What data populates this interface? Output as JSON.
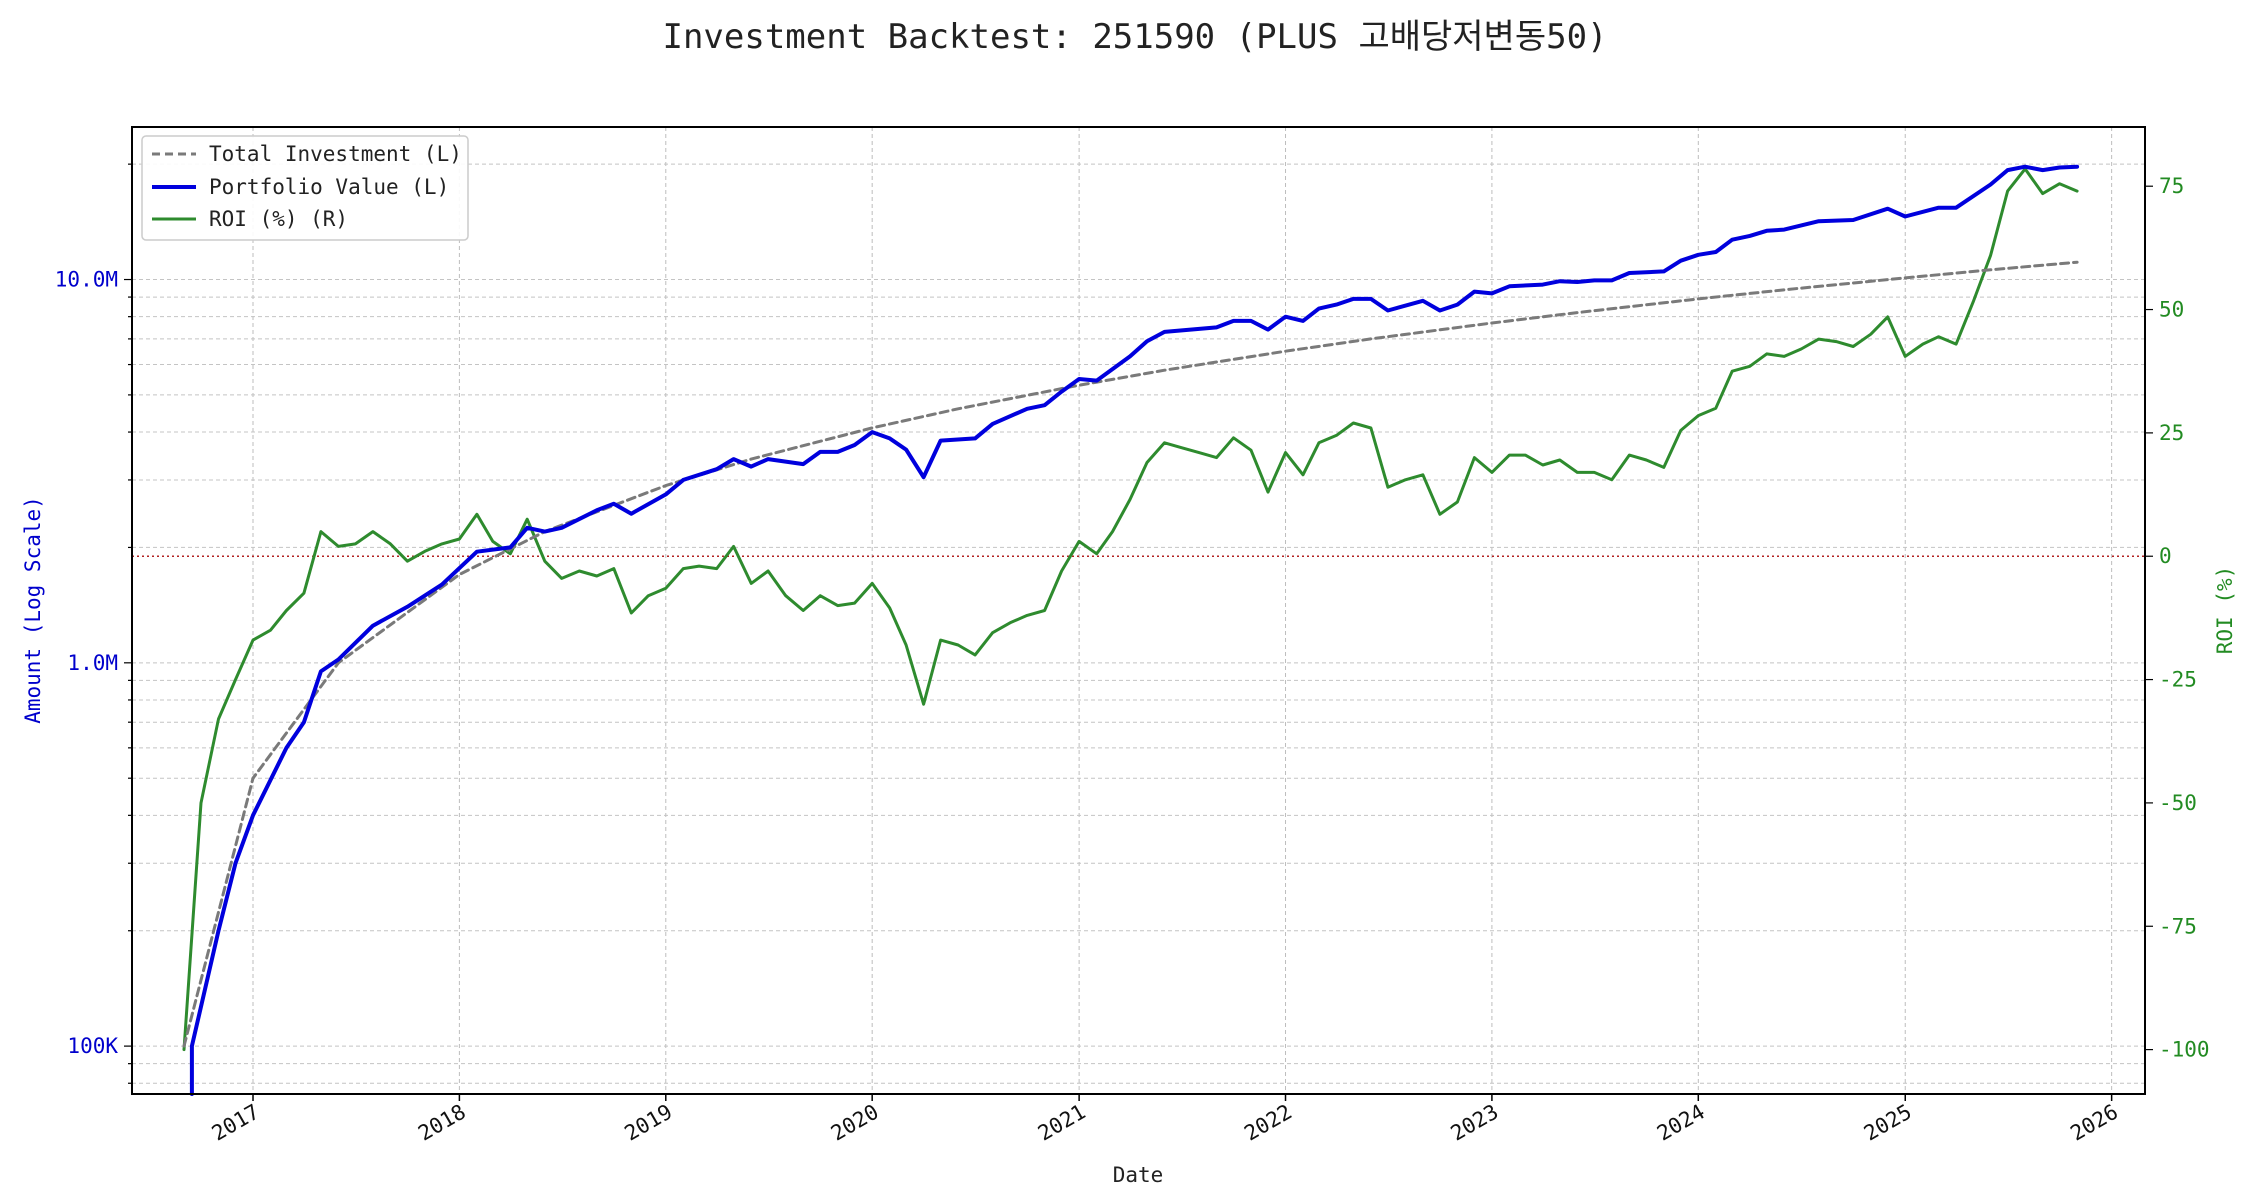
{
  "chart_data": {
    "type": "line",
    "title": "Investment Backtest: 251590 (PLUS 고배당저변동50)",
    "xlabel": "Date",
    "ylabel_left": "Amount (Log Scale)",
    "ylabel_right": "ROI (%)",
    "x_range": [
      "2016-06-01",
      "2026-03-01"
    ],
    "x_ticks": [
      "2017",
      "2018",
      "2019",
      "2020",
      "2021",
      "2022",
      "2023",
      "2024",
      "2025",
      "2026"
    ],
    "y_left_scale": "log",
    "y_left_range": [
      75000,
      25000000
    ],
    "y_left_ticks": [
      {
        "value": 100000,
        "label": "100K"
      },
      {
        "value": 1000000,
        "label": "1.0M"
      },
      {
        "value": 10000000,
        "label": "10.0M"
      }
    ],
    "y_right_range": [
      -109,
      87
    ],
    "y_right_ticks": [
      -100,
      -75,
      -50,
      -25,
      0,
      25,
      50,
      75
    ],
    "grid": true,
    "legend_position": "top-left",
    "reference_line": {
      "axis": "right",
      "value": 0,
      "color": "#b22222",
      "style": "dotted"
    },
    "colors": {
      "total_investment": "#7a7a7a",
      "portfolio": "#0000dd",
      "roi": "#2e8b2e",
      "left_axis": "#0000cc",
      "right_axis": "#228b22"
    },
    "series": [
      {
        "name": "Total Investment (L)",
        "axis": "left",
        "style": "dashed",
        "points": [
          [
            "2016-09-01",
            100000
          ],
          [
            "2017-01-01",
            500000
          ],
          [
            "2017-06-01",
            1000000
          ],
          [
            "2018-01-01",
            1700000
          ],
          [
            "2018-06-01",
            2200000
          ],
          [
            "2019-01-01",
            2900000
          ],
          [
            "2019-06-01",
            3400000
          ],
          [
            "2020-01-01",
            4100000
          ],
          [
            "2020-06-01",
            4600000
          ],
          [
            "2021-01-01",
            5300000
          ],
          [
            "2021-06-01",
            5800000
          ],
          [
            "2022-01-01",
            6500000
          ],
          [
            "2022-06-01",
            7000000
          ],
          [
            "2023-01-01",
            7700000
          ],
          [
            "2023-06-01",
            8200000
          ],
          [
            "2024-01-01",
            8900000
          ],
          [
            "2024-06-01",
            9400000
          ],
          [
            "2025-01-01",
            10100000
          ],
          [
            "2025-06-01",
            10600000
          ],
          [
            "2025-11-01",
            11100000
          ]
        ]
      },
      {
        "name": "Portfolio Value (L)",
        "axis": "left",
        "style": "solid",
        "points": [
          [
            "2016-09-15",
            75000
          ],
          [
            "2016-09-15",
            100000
          ],
          [
            "2016-11-01",
            200000
          ],
          [
            "2016-12-01",
            300000
          ],
          [
            "2017-01-01",
            400000
          ],
          [
            "2017-03-01",
            600000
          ],
          [
            "2017-04-01",
            700000
          ],
          [
            "2017-05-01",
            950000
          ],
          [
            "2017-06-01",
            1020000
          ],
          [
            "2017-08-01",
            1250000
          ],
          [
            "2017-10-01",
            1400000
          ],
          [
            "2017-12-01",
            1600000
          ],
          [
            "2018-02-01",
            1950000
          ],
          [
            "2018-04-01",
            2000000
          ],
          [
            "2018-05-01",
            2250000
          ],
          [
            "2018-06-01",
            2200000
          ],
          [
            "2018-07-01",
            2250000
          ],
          [
            "2018-09-01",
            2500000
          ],
          [
            "2018-10-01",
            2600000
          ],
          [
            "2018-11-01",
            2450000
          ],
          [
            "2019-01-01",
            2750000
          ],
          [
            "2019-02-01",
            3000000
          ],
          [
            "2019-04-01",
            3200000
          ],
          [
            "2019-05-01",
            3400000
          ],
          [
            "2019-06-01",
            3250000
          ],
          [
            "2019-07-01",
            3400000
          ],
          [
            "2019-09-01",
            3300000
          ],
          [
            "2019-10-01",
            3550000
          ],
          [
            "2019-11-01",
            3550000
          ],
          [
            "2019-12-01",
            3700000
          ],
          [
            "2020-01-01",
            4000000
          ],
          [
            "2020-02-01",
            3850000
          ],
          [
            "2020-03-01",
            3600000
          ],
          [
            "2020-04-01",
            3050000
          ],
          [
            "2020-05-01",
            3800000
          ],
          [
            "2020-07-01",
            3850000
          ],
          [
            "2020-08-01",
            4200000
          ],
          [
            "2020-10-01",
            4600000
          ],
          [
            "2020-11-01",
            4700000
          ],
          [
            "2020-12-01",
            5100000
          ],
          [
            "2021-01-01",
            5500000
          ],
          [
            "2021-02-01",
            5450000
          ],
          [
            "2021-04-01",
            6300000
          ],
          [
            "2021-05-01",
            6900000
          ],
          [
            "2021-06-01",
            7300000
          ],
          [
            "2021-09-01",
            7500000
          ],
          [
            "2021-10-01",
            7800000
          ],
          [
            "2021-11-01",
            7800000
          ],
          [
            "2021-12-01",
            7400000
          ],
          [
            "2022-01-01",
            8000000
          ],
          [
            "2022-02-01",
            7800000
          ],
          [
            "2022-03-01",
            8400000
          ],
          [
            "2022-04-01",
            8600000
          ],
          [
            "2022-05-01",
            8900000
          ],
          [
            "2022-06-01",
            8900000
          ],
          [
            "2022-07-01",
            8300000
          ],
          [
            "2022-09-01",
            8800000
          ],
          [
            "2022-10-01",
            8300000
          ],
          [
            "2022-11-01",
            8600000
          ],
          [
            "2022-12-01",
            9300000
          ],
          [
            "2023-01-01",
            9200000
          ],
          [
            "2023-02-01",
            9600000
          ],
          [
            "2023-04-01",
            9700000
          ],
          [
            "2023-05-01",
            9900000
          ],
          [
            "2023-06-01",
            9850000
          ],
          [
            "2023-07-01",
            9950000
          ],
          [
            "2023-08-01",
            9950000
          ],
          [
            "2023-09-01",
            10400000
          ],
          [
            "2023-11-01",
            10500000
          ],
          [
            "2023-12-01",
            11200000
          ],
          [
            "2024-01-01",
            11600000
          ],
          [
            "2024-02-01",
            11800000
          ],
          [
            "2024-03-01",
            12700000
          ],
          [
            "2024-04-01",
            13000000
          ],
          [
            "2024-05-01",
            13400000
          ],
          [
            "2024-06-01",
            13500000
          ],
          [
            "2024-08-01",
            14200000
          ],
          [
            "2024-10-01",
            14300000
          ],
          [
            "2024-12-01",
            15300000
          ],
          [
            "2025-01-01",
            14600000
          ],
          [
            "2025-03-01",
            15400000
          ],
          [
            "2025-04-01",
            15400000
          ],
          [
            "2025-06-01",
            17700000
          ],
          [
            "2025-07-01",
            19300000
          ],
          [
            "2025-08-01",
            19700000
          ],
          [
            "2025-09-01",
            19300000
          ],
          [
            "2025-10-01",
            19600000
          ],
          [
            "2025-11-01",
            19700000
          ]
        ]
      },
      {
        "name": "ROI (%) (R)",
        "axis": "right",
        "style": "solid",
        "points": [
          [
            "2016-09-01",
            -100
          ],
          [
            "2016-10-01",
            -50
          ],
          [
            "2016-11-01",
            -33
          ],
          [
            "2016-12-01",
            -25
          ],
          [
            "2017-01-01",
            -17
          ],
          [
            "2017-02-01",
            -15
          ],
          [
            "2017-03-01",
            -11
          ],
          [
            "2017-04-01",
            -7.5
          ],
          [
            "2017-05-01",
            5
          ],
          [
            "2017-06-01",
            2
          ],
          [
            "2017-07-01",
            2.5
          ],
          [
            "2017-08-01",
            5
          ],
          [
            "2017-09-01",
            2.5
          ],
          [
            "2017-10-01",
            -1
          ],
          [
            "2017-11-01",
            1
          ],
          [
            "2017-12-01",
            2.5
          ],
          [
            "2018-01-01",
            3.5
          ],
          [
            "2018-02-01",
            8.5
          ],
          [
            "2018-03-01",
            3
          ],
          [
            "2018-04-01",
            0.5
          ],
          [
            "2018-05-01",
            7.5
          ],
          [
            "2018-06-01",
            -1
          ],
          [
            "2018-07-01",
            -4.5
          ],
          [
            "2018-08-01",
            -3
          ],
          [
            "2018-09-01",
            -4
          ],
          [
            "2018-10-01",
            -2.5
          ],
          [
            "2018-11-01",
            -11.5
          ],
          [
            "2018-12-01",
            -8
          ],
          [
            "2019-01-01",
            -6.5
          ],
          [
            "2019-02-01",
            -2.5
          ],
          [
            "2019-03-01",
            -2
          ],
          [
            "2019-04-01",
            -2.5
          ],
          [
            "2019-05-01",
            2
          ],
          [
            "2019-06-01",
            -5.5
          ],
          [
            "2019-07-01",
            -3
          ],
          [
            "2019-08-01",
            -8
          ],
          [
            "2019-09-01",
            -11
          ],
          [
            "2019-10-01",
            -8
          ],
          [
            "2019-11-01",
            -10
          ],
          [
            "2019-12-01",
            -9.5
          ],
          [
            "2020-01-01",
            -5.5
          ],
          [
            "2020-02-01",
            -10.5
          ],
          [
            "2020-03-01",
            -18
          ],
          [
            "2020-04-01",
            -30
          ],
          [
            "2020-05-01",
            -17
          ],
          [
            "2020-06-01",
            -18
          ],
          [
            "2020-07-01",
            -20
          ],
          [
            "2020-08-01",
            -15.5
          ],
          [
            "2020-09-01",
            -13.5
          ],
          [
            "2020-10-01",
            -12
          ],
          [
            "2020-11-01",
            -11
          ],
          [
            "2020-12-01",
            -3
          ],
          [
            "2021-01-01",
            3
          ],
          [
            "2021-02-01",
            0.5
          ],
          [
            "2021-03-01",
            5
          ],
          [
            "2021-04-01",
            11.5
          ],
          [
            "2021-05-01",
            19
          ],
          [
            "2021-06-01",
            23
          ],
          [
            "2021-07-01",
            22
          ],
          [
            "2021-08-01",
            21
          ],
          [
            "2021-09-01",
            20
          ],
          [
            "2021-10-01",
            24
          ],
          [
            "2021-11-01",
            21.5
          ],
          [
            "2021-12-01",
            13
          ],
          [
            "2022-01-01",
            21
          ],
          [
            "2022-02-01",
            16.5
          ],
          [
            "2022-03-01",
            23
          ],
          [
            "2022-04-01",
            24.5
          ],
          [
            "2022-05-01",
            27
          ],
          [
            "2022-06-01",
            26
          ],
          [
            "2022-07-01",
            14
          ],
          [
            "2022-08-01",
            15.5
          ],
          [
            "2022-09-01",
            16.5
          ],
          [
            "2022-10-01",
            8.5
          ],
          [
            "2022-11-01",
            11
          ],
          [
            "2022-12-01",
            20
          ],
          [
            "2023-01-01",
            17
          ],
          [
            "2023-02-01",
            20.5
          ],
          [
            "2023-03-01",
            20.5
          ],
          [
            "2023-04-01",
            18.5
          ],
          [
            "2023-05-01",
            19.5
          ],
          [
            "2023-06-01",
            17
          ],
          [
            "2023-07-01",
            17
          ],
          [
            "2023-08-01",
            15.5
          ],
          [
            "2023-09-01",
            20.5
          ],
          [
            "2023-10-01",
            19.5
          ],
          [
            "2023-11-01",
            18
          ],
          [
            "2023-12-01",
            25.5
          ],
          [
            "2024-01-01",
            28.5
          ],
          [
            "2024-02-01",
            30
          ],
          [
            "2024-03-01",
            37.5
          ],
          [
            "2024-04-01",
            38.5
          ],
          [
            "2024-05-01",
            41
          ],
          [
            "2024-06-01",
            40.5
          ],
          [
            "2024-07-01",
            42
          ],
          [
            "2024-08-01",
            44
          ],
          [
            "2024-09-01",
            43.5
          ],
          [
            "2024-10-01",
            42.5
          ],
          [
            "2024-11-01",
            45
          ],
          [
            "2024-12-01",
            48.5
          ],
          [
            "2025-01-01",
            40.5
          ],
          [
            "2025-02-01",
            43
          ],
          [
            "2025-03-01",
            44.5
          ],
          [
            "2025-04-01",
            43
          ],
          [
            "2025-05-01",
            51.5
          ],
          [
            "2025-06-01",
            61
          ],
          [
            "2025-07-01",
            74
          ],
          [
            "2025-08-01",
            78.5
          ],
          [
            "2025-09-01",
            73.5
          ],
          [
            "2025-10-01",
            75.5
          ],
          [
            "2025-11-01",
            74
          ]
        ]
      }
    ]
  }
}
